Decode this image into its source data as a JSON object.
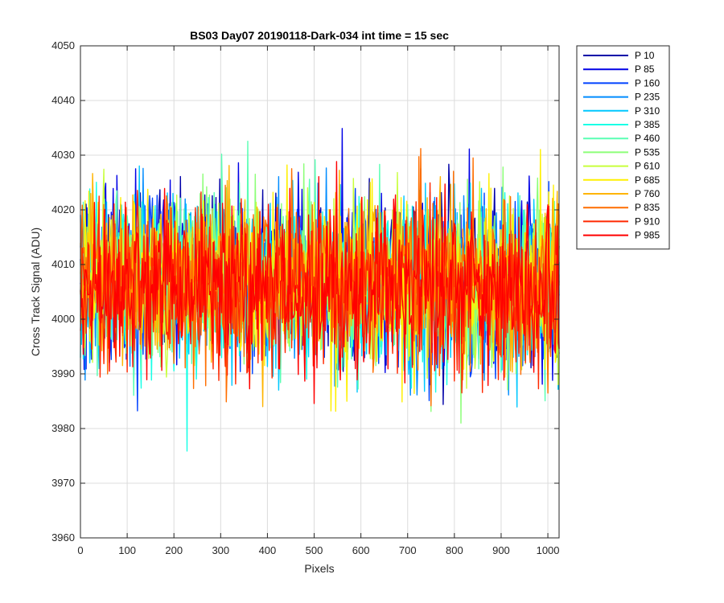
{
  "chart_data": {
    "type": "line",
    "title": "BS03 Day07 20190118-Dark-034 int time = 15 sec",
    "xlabel": "Pixels",
    "ylabel": "Cross Track Signal (ADU)",
    "xlim": [
      0,
      1024
    ],
    "ylim": [
      3960,
      4050
    ],
    "xticks": [
      0,
      100,
      200,
      300,
      400,
      500,
      600,
      700,
      800,
      900,
      1000
    ],
    "yticks": [
      3960,
      3970,
      3980,
      3990,
      4000,
      4010,
      4020,
      4030,
      4040,
      4050
    ],
    "grid": true,
    "legend_position": "outside-right",
    "series": [
      {
        "name": "P 10",
        "color": "#0000a8",
        "mean": 4009,
        "sd": 7.5
      },
      {
        "name": "P 85",
        "color": "#0000e6",
        "mean": 4009,
        "sd": 7.5
      },
      {
        "name": "P 160",
        "color": "#0042ff",
        "mean": 4008,
        "sd": 7.5
      },
      {
        "name": "P 235",
        "color": "#008cff",
        "mean": 4008,
        "sd": 7.5
      },
      {
        "name": "P 310",
        "color": "#00c8ff",
        "mean": 4008,
        "sd": 7.5
      },
      {
        "name": "P 385",
        "color": "#19ffe6",
        "mean": 4008,
        "sd": 7.5
      },
      {
        "name": "P 460",
        "color": "#5affb4",
        "mean": 4008,
        "sd": 7.5
      },
      {
        "name": "P 535",
        "color": "#8cff78",
        "mean": 4008,
        "sd": 7.5
      },
      {
        "name": "P 610",
        "color": "#c8ff3c",
        "mean": 4008,
        "sd": 7.5
      },
      {
        "name": "P 685",
        "color": "#fff000",
        "mean": 4008,
        "sd": 7.5
      },
      {
        "name": "P 760",
        "color": "#ffb400",
        "mean": 4008,
        "sd": 7.5
      },
      {
        "name": "P 835",
        "color": "#ff6e00",
        "mean": 4008,
        "sd": 7.5
      },
      {
        "name": "P 910",
        "color": "#ff2800",
        "mean": 4007,
        "sd": 7.5
      },
      {
        "name": "P 985",
        "color": "#ff0000",
        "mean": 4007,
        "sd": 7.5
      }
    ]
  }
}
